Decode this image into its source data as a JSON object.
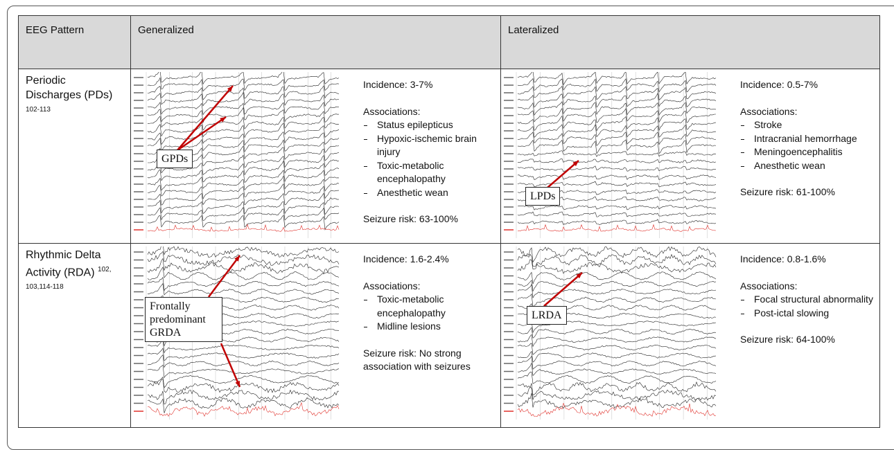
{
  "table": {
    "header": [
      "EEG Pattern",
      "Generalized",
      "Lateralized"
    ],
    "rows": [
      {
        "pattern": "Periodic Discharges (PDs)",
        "refs": "102-113",
        "generalized": {
          "label": "GPDs",
          "incidence": "Incidence: 3-7%",
          "associations_title": "Associations:",
          "associations": [
            "Status epilepticus",
            "Hypoxic-ischemic brain injury",
            "Toxic-metabolic encephalopathy",
            "Anesthetic wean"
          ],
          "seizure_risk": "Seizure risk: 63-100%"
        },
        "lateralized": {
          "label": "LPDs",
          "incidence": "Incidence: 0.5-7%",
          "associations_title": "Associations:",
          "associations": [
            "Stroke",
            "Intracranial hemorrhage",
            "Meningoencephalitis",
            "Anesthetic wean"
          ],
          "seizure_risk": "Seizure risk: 61-100%"
        }
      },
      {
        "pattern": "Rhythmic Delta Activity (RDA)",
        "refs": "102, 103,114-118",
        "generalized": {
          "label": "Frontally predominant GRDA",
          "incidence": "Incidence: 1.6-2.4%",
          "associations_title": "Associations:",
          "associations": [
            "Toxic-metabolic encephalopathy",
            "Midline lesions"
          ],
          "seizure_risk": "Seizure risk: No strong association with seizures"
        },
        "lateralized": {
          "label": "LRDA",
          "incidence": "Incidence: 0.8-1.6%",
          "associations_title": "Associations:",
          "associations": [
            "Focal structural abnormality",
            "Post-ictal slowing"
          ],
          "seizure_risk": "Seizure risk: 64-100%"
        }
      }
    ]
  }
}
